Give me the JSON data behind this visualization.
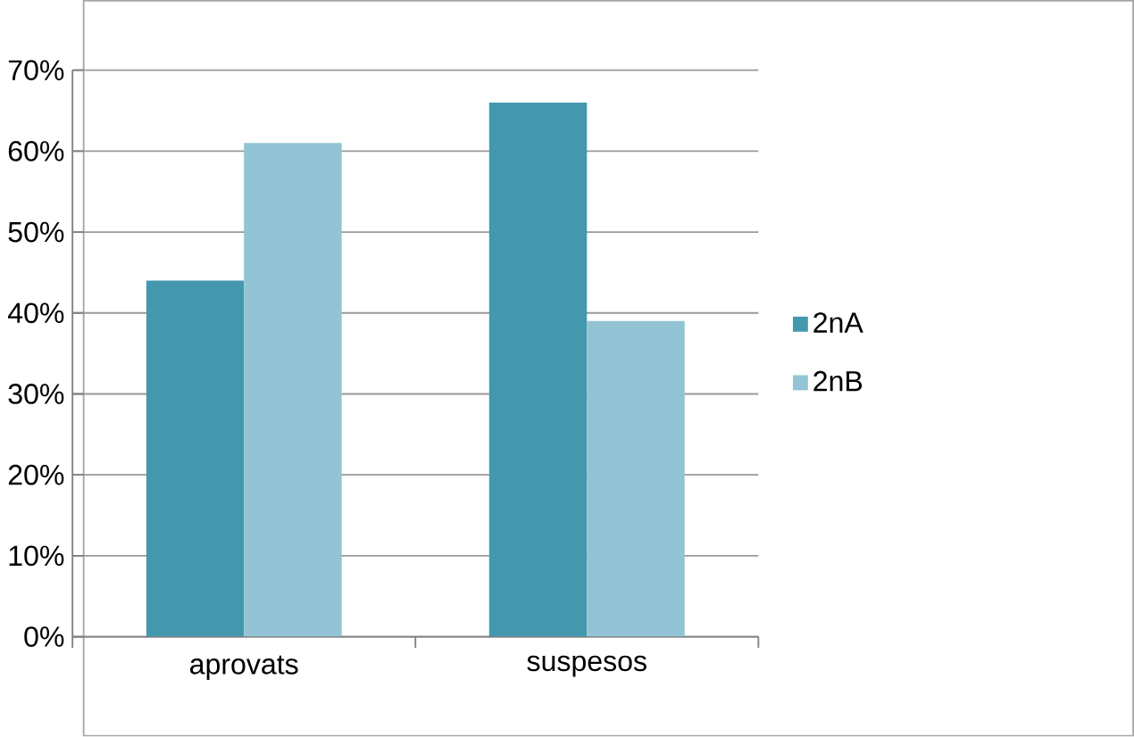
{
  "chart_data": {
    "type": "bar",
    "categories": [
      "aprovats",
      "suspesos"
    ],
    "series": [
      {
        "name": "2nA",
        "color": "#4398ae",
        "values": [
          44,
          66
        ]
      },
      {
        "name": "2nB",
        "color": "#93c4d6",
        "values": [
          61,
          39
        ]
      }
    ],
    "ylim": [
      0,
      70
    ],
    "yticks": [
      {
        "value": 0,
        "label": "0%"
      },
      {
        "value": 10,
        "label": "10%"
      },
      {
        "value": 20,
        "label": "20%"
      },
      {
        "value": 30,
        "label": "30%"
      },
      {
        "value": 40,
        "label": "40%"
      },
      {
        "value": 50,
        "label": "50%"
      },
      {
        "value": 60,
        "label": "60%"
      },
      {
        "value": 70,
        "label": "70%"
      }
    ],
    "grid": "y",
    "legend": "right"
  }
}
